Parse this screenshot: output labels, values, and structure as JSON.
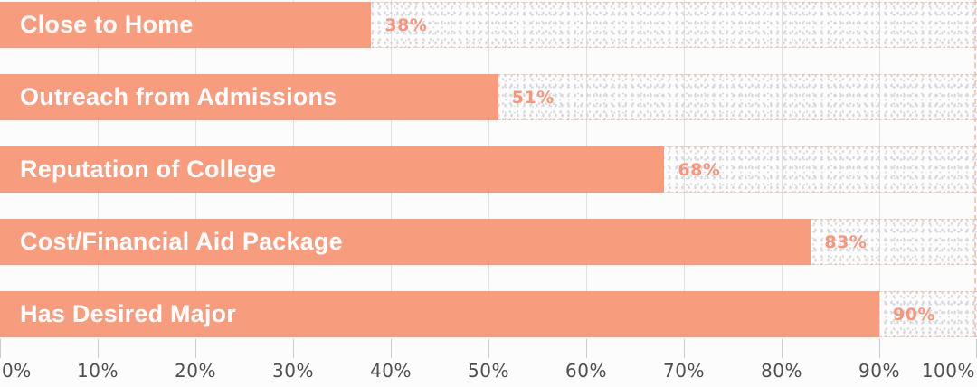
{
  "chart_data": {
    "type": "bar",
    "orientation": "horizontal",
    "title": "",
    "categories": [
      "Close to Home",
      "Outreach from Admissions",
      "Reputation of College",
      "Cost/Financial Aid Package",
      "Has Desired Major"
    ],
    "values": [
      38,
      51,
      68,
      83,
      90
    ],
    "value_labels": [
      "38%",
      "51%",
      "68%",
      "83%",
      "90%"
    ],
    "xlim": [
      0,
      100
    ],
    "x_tick_values": [
      0,
      10,
      20,
      30,
      40,
      50,
      60,
      70,
      80,
      90,
      100
    ],
    "x_tick_labels": [
      "0%",
      "10%",
      "20%",
      "30%",
      "40%",
      "50%",
      "60%",
      "70%",
      "80%",
      "90%",
      "100%"
    ],
    "grid": "vertical gridlines every 10%, dashed accent line at 100%",
    "legend": "none",
    "colors": {
      "bar": "#f89c7e",
      "value_label": "#f8957a",
      "bar_label": "#ffffff",
      "axis_label": "#4f4f51",
      "gridline": "#e1e1e2",
      "accent_dashed_line": "#f89c7e",
      "track_dots": "#d8d8da",
      "background": "#fcfcfc"
    }
  }
}
